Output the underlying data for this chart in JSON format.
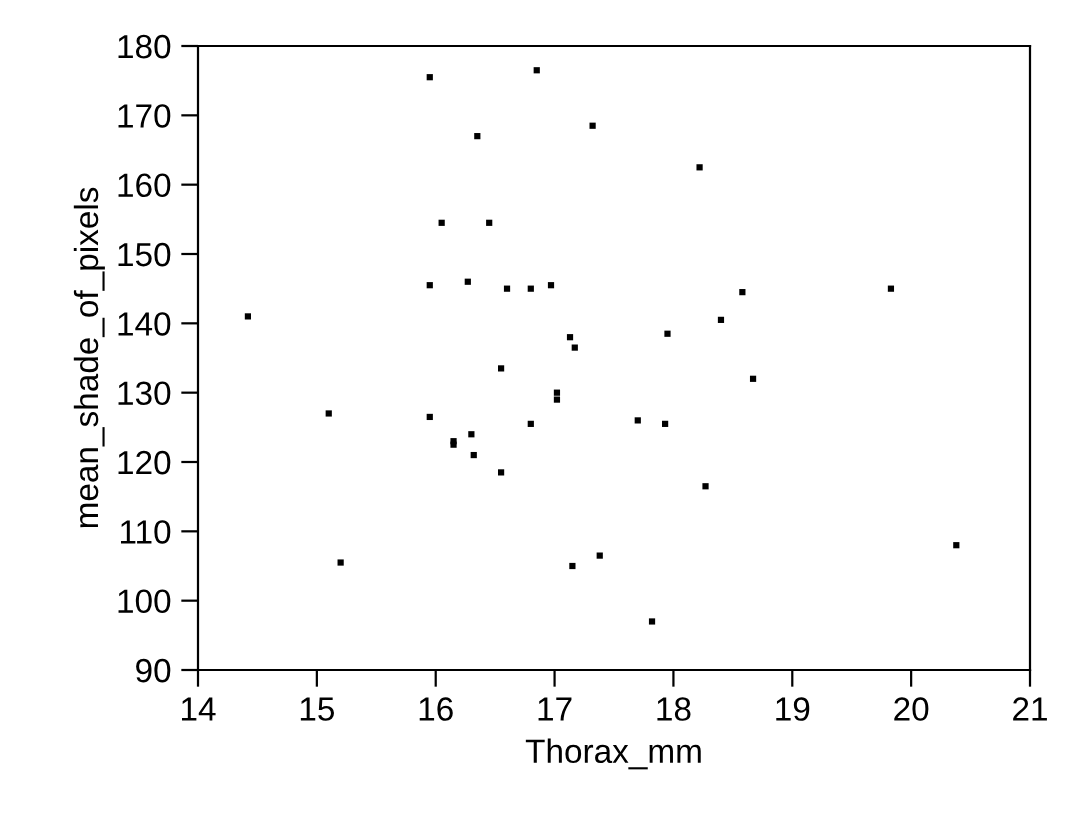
{
  "chart_data": {
    "type": "scatter",
    "xlabel": "Thorax_mm",
    "ylabel": "mean_shade_of_pixels",
    "x": [
      14.42,
      15.1,
      15.2,
      15.95,
      15.95,
      15.95,
      16.05,
      16.15,
      16.15,
      16.27,
      16.3,
      16.32,
      16.35,
      16.45,
      16.55,
      16.55,
      16.6,
      16.8,
      16.8,
      16.85,
      16.97,
      17.02,
      17.02,
      17.13,
      17.17,
      17.15,
      17.32,
      17.38,
      17.7,
      17.82,
      17.95,
      17.93,
      18.22,
      18.27,
      18.4,
      18.58,
      18.67,
      19.83,
      20.38
    ],
    "series": [
      {
        "color": "#000000",
        "values": [
          141,
          127,
          105.5,
          175.5,
          145.5,
          126.5,
          154.5,
          123,
          122.5,
          146,
          124,
          121,
          167,
          154.5,
          133.5,
          118.5,
          145,
          145,
          125.5,
          176.5,
          145.5,
          130,
          129,
          138,
          136.5,
          105,
          168.5,
          106.5,
          126,
          97,
          138.5,
          125.5,
          162.5,
          116.5,
          140.5,
          144.5,
          132,
          145,
          108
        ]
      }
    ],
    "xlim": [
      14,
      21
    ],
    "xticks": [
      14,
      15,
      16,
      17,
      18,
      19,
      20,
      21
    ],
    "ylim": [
      90,
      180
    ],
    "yticks": [
      90,
      100,
      110,
      120,
      130,
      140,
      150,
      160,
      170,
      180
    ],
    "grid": false,
    "marker": "square"
  }
}
